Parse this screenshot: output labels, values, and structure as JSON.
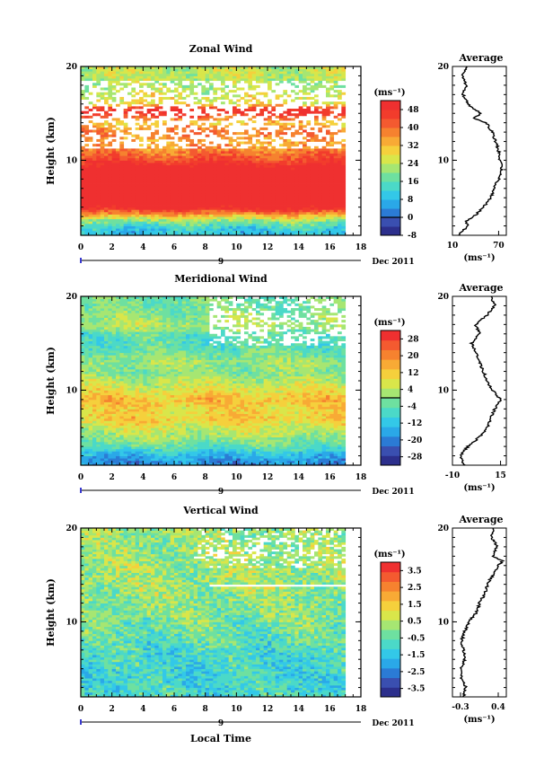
{
  "chart_data": [
    {
      "type": "heatmap",
      "title": "Zonal Wind",
      "ylabel": "Height (km)",
      "xlabel": "",
      "xlim": [
        0,
        18
      ],
      "ylim": [
        2,
        20
      ],
      "x_ticks": [
        "0",
        "2",
        "4",
        "6",
        "8",
        "10",
        "12",
        "14",
        "16",
        "18"
      ],
      "y_ticks": [
        "10",
        "20"
      ],
      "date_marker": "9",
      "date_label": "Dec 2011",
      "colorbar": {
        "unit": "(ms⁻¹)",
        "ticks": [
          "48",
          "40",
          "32",
          "24",
          "16",
          "8",
          "0",
          "-8"
        ],
        "min": -8,
        "max": 52,
        "zero_line": 0,
        "colors": [
          "#2c2f8c",
          "#3a4fb0",
          "#2b7bd5",
          "#2aa8e8",
          "#33c8e8",
          "#4bd9c8",
          "#6ee0a0",
          "#a6e672",
          "#d9e64a",
          "#f5d03c",
          "#f8aa35",
          "#f6822f",
          "#f45a30",
          "#f23c2c",
          "#ef3030"
        ]
      },
      "field_profile": [
        {
          "h": 2.5,
          "v": 10
        },
        {
          "h": 3.0,
          "v": 14
        },
        {
          "h": 3.5,
          "v": 20
        },
        {
          "h": 4.0,
          "v": 30
        },
        {
          "h": 5.0,
          "v": 52
        },
        {
          "h": 6.0,
          "v": 60
        },
        {
          "h": 7.0,
          "v": 62
        },
        {
          "h": 8.0,
          "v": 60
        },
        {
          "h": 9.0,
          "v": 55
        },
        {
          "h": 10.0,
          "v": 45
        },
        {
          "h": 11.0,
          "v": 38
        },
        {
          "h": 12.0,
          "v": 34
        },
        {
          "h": 13.0,
          "v": 40
        },
        {
          "h": 14.0,
          "v": 30
        },
        {
          "h": 15.0,
          "v": 48
        },
        {
          "h": 15.5,
          "v": 50
        },
        {
          "h": 16.0,
          "v": 28
        },
        {
          "h": 17.0,
          "v": 26
        },
        {
          "h": 18.0,
          "v": 22
        },
        {
          "h": 19.0,
          "v": 24
        }
      ],
      "average": {
        "title": "Average",
        "unit_label": "(ms⁻¹)",
        "x_ticks": [
          "10",
          "70"
        ],
        "xlim": [
          10,
          80
        ],
        "y_ticks": [
          "10",
          "20"
        ],
        "ylim": [
          2,
          20
        ],
        "profile": [
          {
            "h": 2.0,
            "v": 18
          },
          {
            "h": 3.0,
            "v": 30
          },
          {
            "h": 3.5,
            "v": 28
          },
          {
            "h": 4.0,
            "v": 38
          },
          {
            "h": 5.0,
            "v": 50
          },
          {
            "h": 6.0,
            "v": 60
          },
          {
            "h": 7.0,
            "v": 64
          },
          {
            "h": 8.0,
            "v": 70
          },
          {
            "h": 9.0,
            "v": 74
          },
          {
            "h": 10.0,
            "v": 72
          },
          {
            "h": 11.0,
            "v": 70
          },
          {
            "h": 12.0,
            "v": 66
          },
          {
            "h": 13.0,
            "v": 62
          },
          {
            "h": 14.0,
            "v": 54
          },
          {
            "h": 14.5,
            "v": 38
          },
          {
            "h": 15.0,
            "v": 48
          },
          {
            "h": 15.5,
            "v": 38
          },
          {
            "h": 16.0,
            "v": 30
          },
          {
            "h": 17.0,
            "v": 24
          },
          {
            "h": 18.0,
            "v": 28
          },
          {
            "h": 19.0,
            "v": 22
          },
          {
            "h": 20.0,
            "v": 28
          }
        ]
      }
    },
    {
      "type": "heatmap",
      "title": "Meridional Wind",
      "ylabel": "Height (km)",
      "xlabel": "",
      "xlim": [
        0,
        18
      ],
      "ylim": [
        2,
        20
      ],
      "x_ticks": [
        "0",
        "2",
        "4",
        "6",
        "8",
        "10",
        "12",
        "14",
        "16",
        "18"
      ],
      "y_ticks": [
        "10",
        "20"
      ],
      "date_marker": "9",
      "date_label": "Dec 2011",
      "colorbar": {
        "unit": "(ms⁻¹)",
        "ticks": [
          "28",
          "20",
          "12",
          "4",
          "-4",
          "-12",
          "-20",
          "-28"
        ],
        "min": -32,
        "max": 32,
        "zero_line": 0,
        "colors": [
          "#2c2f8c",
          "#3a4fb0",
          "#2b7bd5",
          "#2aa8e8",
          "#33c8e8",
          "#4bd9c8",
          "#6ee0a0",
          "#a6e672",
          "#d9e64a",
          "#f5d03c",
          "#f8aa35",
          "#f6822f",
          "#f45a30",
          "#ef3030"
        ]
      },
      "field_profile": [
        {
          "h": 2.5,
          "v": -18
        },
        {
          "h": 3.0,
          "v": -14
        },
        {
          "h": 3.5,
          "v": -10
        },
        {
          "h": 4.0,
          "v": -4
        },
        {
          "h": 5.0,
          "v": 2
        },
        {
          "h": 6.0,
          "v": 6
        },
        {
          "h": 7.0,
          "v": 12
        },
        {
          "h": 8.0,
          "v": 10
        },
        {
          "h": 9.0,
          "v": 14
        },
        {
          "h": 10.0,
          "v": 8
        },
        {
          "h": 11.0,
          "v": 4
        },
        {
          "h": 12.0,
          "v": 0
        },
        {
          "h": 13.0,
          "v": 2
        },
        {
          "h": 14.0,
          "v": -2
        },
        {
          "h": 15.0,
          "v": -6
        },
        {
          "h": 16.0,
          "v": -4
        },
        {
          "h": 17.0,
          "v": 4
        },
        {
          "h": 18.0,
          "v": 0
        },
        {
          "h": 19.0,
          "v": -2
        }
      ],
      "average": {
        "title": "Average",
        "unit_label": "(ms⁻¹)",
        "x_ticks": [
          "-10",
          "15"
        ],
        "xlim": [
          -10,
          18
        ],
        "y_ticks": [
          "10",
          "20"
        ],
        "ylim": [
          2,
          20
        ],
        "profile": [
          {
            "h": 2.0,
            "v": -4
          },
          {
            "h": 3.0,
            "v": -6
          },
          {
            "h": 4.0,
            "v": -2
          },
          {
            "h": 5.0,
            "v": 4
          },
          {
            "h": 6.0,
            "v": 8
          },
          {
            "h": 7.0,
            "v": 10
          },
          {
            "h": 8.0,
            "v": 12
          },
          {
            "h": 9.0,
            "v": 15
          },
          {
            "h": 10.0,
            "v": 11
          },
          {
            "h": 11.0,
            "v": 8
          },
          {
            "h": 12.0,
            "v": 6
          },
          {
            "h": 13.0,
            "v": 4
          },
          {
            "h": 14.0,
            "v": 2
          },
          {
            "h": 15.0,
            "v": 0
          },
          {
            "h": 16.0,
            "v": 4
          },
          {
            "h": 17.0,
            "v": 2
          },
          {
            "h": 18.0,
            "v": 8
          },
          {
            "h": 19.0,
            "v": 12
          },
          {
            "h": 20.0,
            "v": 10
          }
        ]
      }
    },
    {
      "type": "heatmap",
      "title": "Vertical Wind",
      "ylabel": "Height (km)",
      "xlabel": "Local Time",
      "xlim": [
        0,
        18
      ],
      "ylim": [
        2,
        20
      ],
      "x_ticks": [
        "0",
        "2",
        "4",
        "6",
        "8",
        "10",
        "12",
        "14",
        "16",
        "18"
      ],
      "y_ticks": [
        "10",
        "20"
      ],
      "date_marker": "9",
      "date_label": "Dec 2011",
      "colorbar": {
        "unit": "(ms⁻¹)",
        "ticks": [
          "3.5",
          "2.5",
          "1.5",
          "0.5",
          "-0.5",
          "-1.5",
          "-2.5",
          "-3.5"
        ],
        "min": -4,
        "max": 4,
        "zero_line": null,
        "colors": [
          "#2c2f8c",
          "#3a4fb0",
          "#2b7bd5",
          "#2aa8e8",
          "#33c8e8",
          "#4bd9c8",
          "#6ee0a0",
          "#a6e672",
          "#d9e64a",
          "#f5d03c",
          "#f8aa35",
          "#f6822f",
          "#f45a30",
          "#ef3030"
        ]
      },
      "field_profile": [
        {
          "h": 2.5,
          "v": -0.9
        },
        {
          "h": 4.0,
          "v": -1.1
        },
        {
          "h": 6.0,
          "v": -1.0
        },
        {
          "h": 8.0,
          "v": -0.6
        },
        {
          "h": 10.0,
          "v": -0.2
        },
        {
          "h": 12.0,
          "v": 0.0
        },
        {
          "h": 14.0,
          "v": 0.2
        },
        {
          "h": 16.0,
          "v": 0.3
        },
        {
          "h": 18.0,
          "v": 0.1
        },
        {
          "h": 19.5,
          "v": 0.2
        }
      ],
      "average": {
        "title": "Average",
        "unit_label": "(ms⁻¹)",
        "x_ticks": [
          "-0.3",
          "0.4"
        ],
        "xlim": [
          -0.45,
          0.55
        ],
        "y_ticks": [
          "10",
          "20"
        ],
        "ylim": [
          2,
          20
        ],
        "profile": [
          {
            "h": 2.0,
            "v": -0.25
          },
          {
            "h": 3.0,
            "v": -0.2
          },
          {
            "h": 4.0,
            "v": -0.28
          },
          {
            "h": 5.0,
            "v": -0.3
          },
          {
            "h": 6.0,
            "v": -0.22
          },
          {
            "h": 7.0,
            "v": -0.25
          },
          {
            "h": 8.0,
            "v": -0.28
          },
          {
            "h": 9.0,
            "v": -0.22
          },
          {
            "h": 10.0,
            "v": -0.15
          },
          {
            "h": 11.0,
            "v": 0.0
          },
          {
            "h": 12.0,
            "v": 0.05
          },
          {
            "h": 13.0,
            "v": 0.15
          },
          {
            "h": 14.0,
            "v": 0.2
          },
          {
            "h": 15.0,
            "v": 0.3
          },
          {
            "h": 16.0,
            "v": 0.4
          },
          {
            "h": 16.5,
            "v": 0.48
          },
          {
            "h": 17.0,
            "v": 0.3
          },
          {
            "h": 18.0,
            "v": 0.38
          },
          {
            "h": 19.0,
            "v": 0.28
          },
          {
            "h": 20.0,
            "v": 0.3
          }
        ]
      }
    }
  ]
}
